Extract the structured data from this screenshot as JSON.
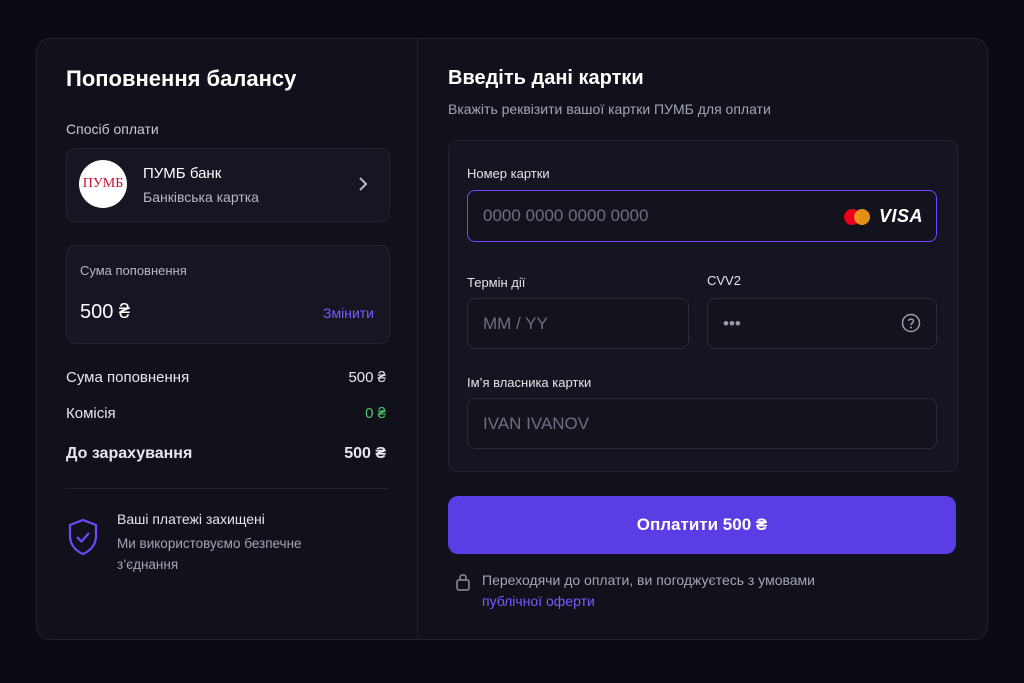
{
  "left": {
    "title": "Поповнення балансу",
    "payment_method_label": "Спосіб оплати",
    "bank": {
      "logo": "ПУМБ",
      "name": "ПУМБ банк",
      "type": "Банківська картка"
    },
    "amount_box": {
      "label": "Сума поповнення",
      "amount": "500 ₴",
      "change": "Змінити"
    },
    "summary": [
      {
        "label": "Сума поповнення",
        "value": "500 ₴"
      },
      {
        "label": "Комісія",
        "value": "0 ₴"
      },
      {
        "label": "До зарахування",
        "value": "500 ₴"
      }
    ],
    "security": {
      "title": "Ваші платежі захищені",
      "text": "Ми використовуємо безпечне з’єднання"
    }
  },
  "right": {
    "title": "Введіть дані картки",
    "subtitle": "Вкажіть реквізити вашої картки ПУМБ для оплати",
    "card_number": {
      "label": "Номер картки",
      "placeholder": "0000 0000 0000 0000"
    },
    "card_brand": "VISA",
    "expiry": {
      "label": "Термін дії",
      "placeholder": "MM / YY"
    },
    "cvv": {
      "label": "CVV2",
      "placeholder": "•••"
    },
    "holder": {
      "label": "Ім’я власника картки",
      "placeholder": "IVAN IVANOV"
    },
    "pay_button": "Оплатити 500 ₴",
    "terms": {
      "text": "Переходячи до оплати, ви погоджуєтесь з умовами",
      "link": "публічної оферти"
    }
  }
}
